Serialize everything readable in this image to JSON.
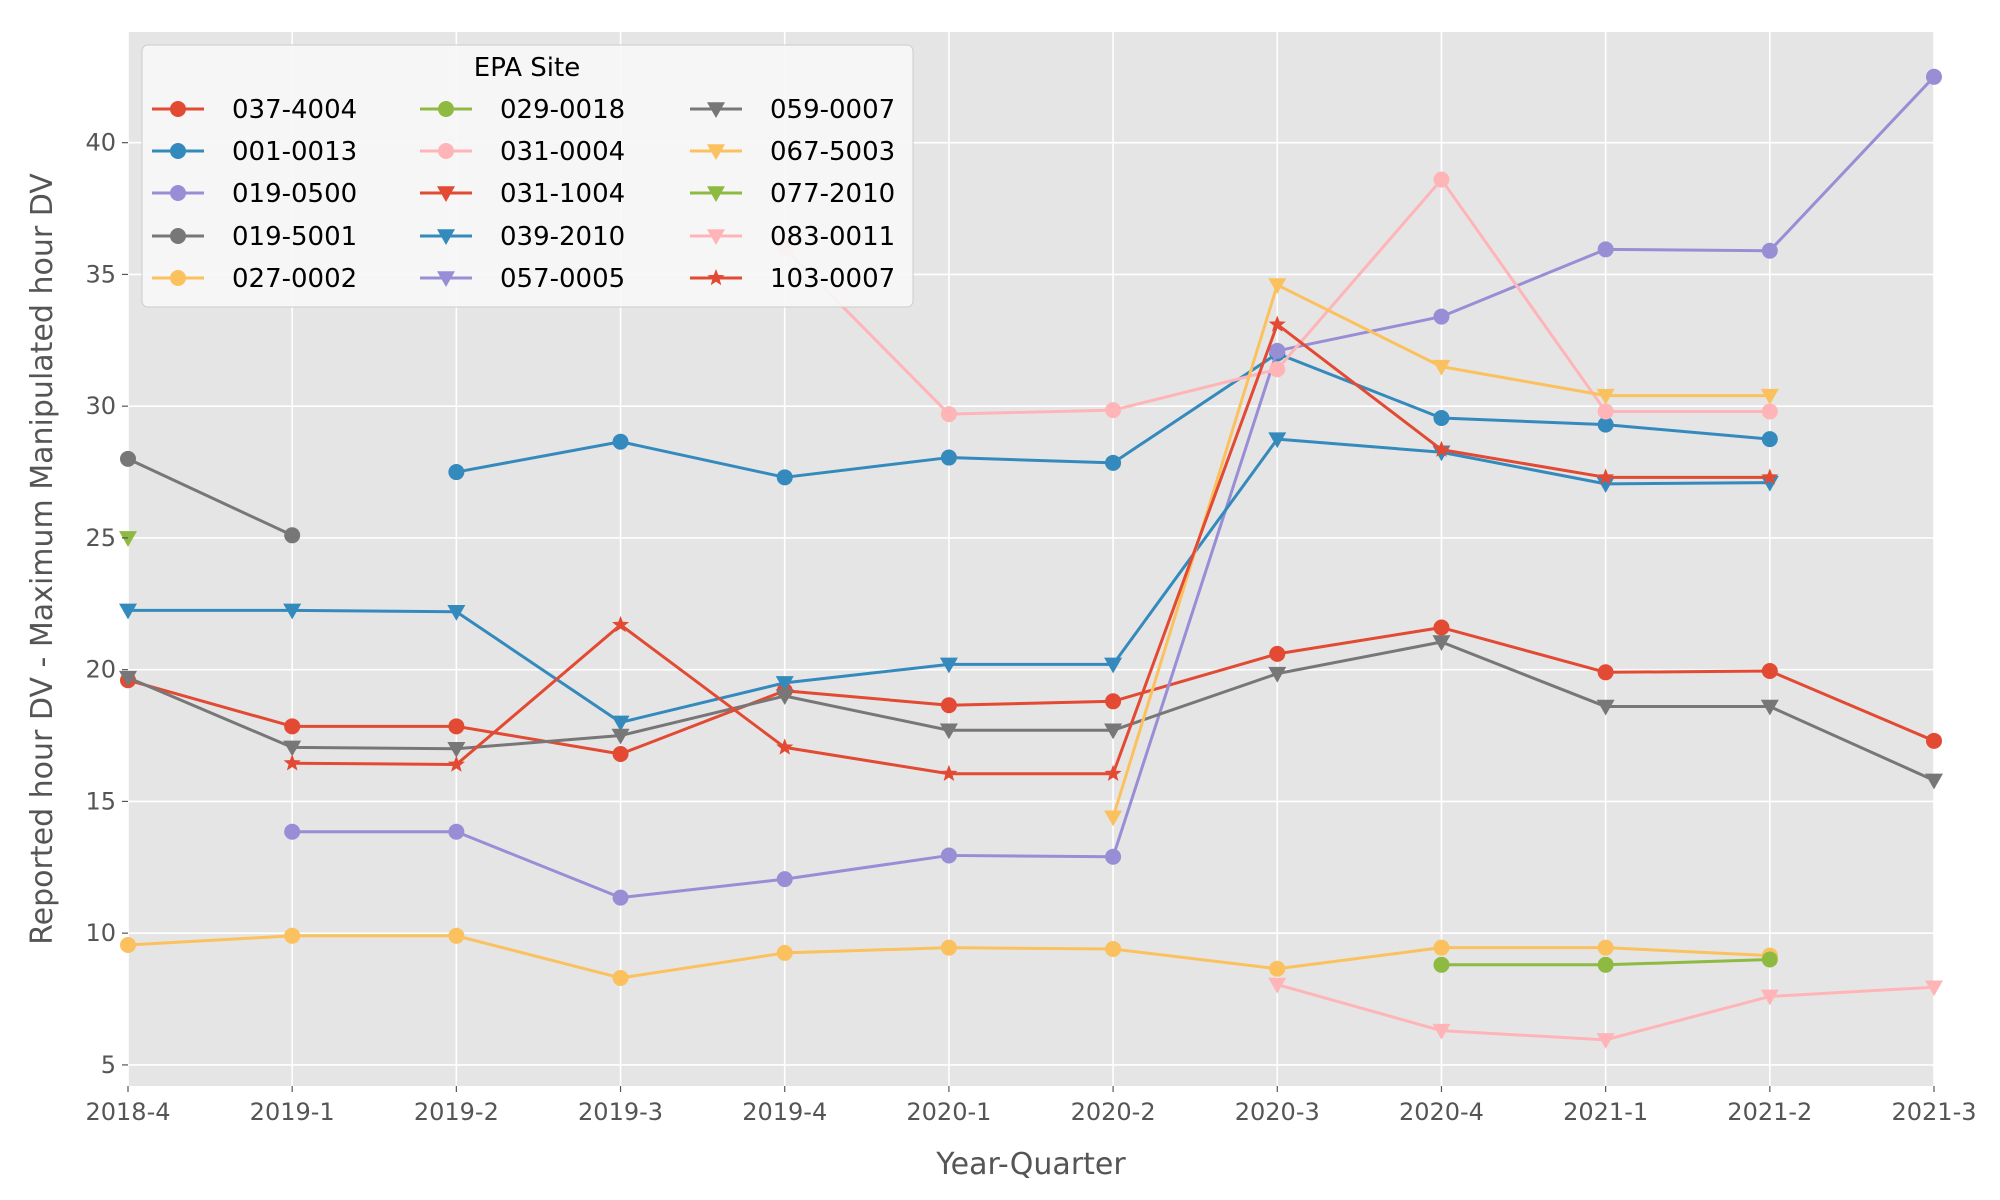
{
  "chart_data": {
    "type": "line",
    "xlabel": "Year-Quarter",
    "ylabel": "Reported hour DV - Maximum Manipulated hour DV",
    "categories": [
      "2018-4",
      "2019-1",
      "2019-2",
      "2019-3",
      "2019-4",
      "2020-1",
      "2020-2",
      "2020-3",
      "2020-4",
      "2021-1",
      "2021-2",
      "2021-3"
    ],
    "ylim": [
      4.2,
      44.2
    ],
    "yticks": [
      5,
      10,
      15,
      20,
      25,
      30,
      35,
      40
    ],
    "grid": true,
    "legend": {
      "title": "EPA Site",
      "placement": "top-left",
      "columns": 3
    },
    "series": [
      {
        "name": "037-4004",
        "color": "#E24A33",
        "marker": "circle",
        "values": [
          19.6,
          17.85,
          17.85,
          16.8,
          19.2,
          18.65,
          18.8,
          20.6,
          21.6,
          19.9,
          19.95,
          17.3
        ]
      },
      {
        "name": "001-0013",
        "color": "#348ABD",
        "marker": "circle",
        "values": [
          null,
          null,
          27.5,
          28.65,
          27.3,
          28.05,
          27.85,
          32.0,
          29.55,
          29.3,
          28.75,
          null
        ]
      },
      {
        "name": "019-0500",
        "color": "#988ED5",
        "marker": "circle",
        "values": [
          null,
          13.85,
          13.85,
          11.35,
          12.05,
          12.95,
          12.9,
          32.1,
          33.4,
          35.95,
          35.9,
          42.5
        ]
      },
      {
        "name": "019-5001",
        "color": "#777777",
        "marker": "circle",
        "values": [
          28.0,
          25.1,
          null,
          null,
          null,
          null,
          null,
          null,
          null,
          null,
          null,
          null
        ]
      },
      {
        "name": "027-0002",
        "color": "#FBC15E",
        "marker": "circle",
        "values": [
          9.55,
          9.9,
          9.9,
          8.3,
          9.25,
          9.45,
          9.4,
          8.65,
          9.45,
          9.45,
          9.15,
          null
        ]
      },
      {
        "name": "029-0018",
        "color": "#8EBA42",
        "marker": "circle",
        "values": [
          null,
          null,
          null,
          null,
          null,
          null,
          null,
          null,
          8.8,
          8.8,
          9.0,
          null
        ]
      },
      {
        "name": "031-0004",
        "color": "#FFB5B8",
        "marker": "circle",
        "values": [
          null,
          null,
          null,
          null,
          36.0,
          29.7,
          29.85,
          31.4,
          38.6,
          29.8,
          29.8,
          null
        ]
      },
      {
        "name": "031-1004",
        "color": "#E24A33",
        "marker": "triangle",
        "values": [
          null,
          null,
          null,
          null,
          null,
          null,
          null,
          null,
          null,
          null,
          null,
          null
        ]
      },
      {
        "name": "039-2010",
        "color": "#348ABD",
        "marker": "triangle",
        "values": [
          22.25,
          22.25,
          22.2,
          18.0,
          19.5,
          20.2,
          20.2,
          28.75,
          28.25,
          27.05,
          27.1,
          null
        ]
      },
      {
        "name": "057-0005",
        "color": "#988ED5",
        "marker": "triangle",
        "values": [
          null,
          null,
          null,
          null,
          null,
          null,
          null,
          null,
          null,
          null,
          null,
          null
        ]
      },
      {
        "name": "059-0007",
        "color": "#777777",
        "marker": "triangle",
        "values": [
          19.7,
          17.05,
          17.0,
          17.5,
          19.0,
          17.7,
          17.7,
          19.85,
          21.05,
          18.6,
          18.6,
          15.8
        ]
      },
      {
        "name": "067-5003",
        "color": "#FBC15E",
        "marker": "triangle",
        "values": [
          null,
          null,
          null,
          null,
          null,
          null,
          14.4,
          34.6,
          31.5,
          30.4,
          30.4,
          null
        ]
      },
      {
        "name": "077-2010",
        "color": "#8EBA42",
        "marker": "triangle",
        "values": [
          25.0,
          null,
          null,
          null,
          null,
          null,
          null,
          null,
          null,
          null,
          null,
          null
        ]
      },
      {
        "name": "083-0011",
        "color": "#FFB5B8",
        "marker": "triangle",
        "values": [
          null,
          null,
          null,
          null,
          null,
          null,
          null,
          8.05,
          6.3,
          5.95,
          7.6,
          7.95
        ]
      },
      {
        "name": "103-0007",
        "color": "#E24A33",
        "marker": "star",
        "values": [
          null,
          16.45,
          16.4,
          21.7,
          17.05,
          16.05,
          16.05,
          33.1,
          28.35,
          27.3,
          27.3,
          null
        ]
      }
    ]
  }
}
